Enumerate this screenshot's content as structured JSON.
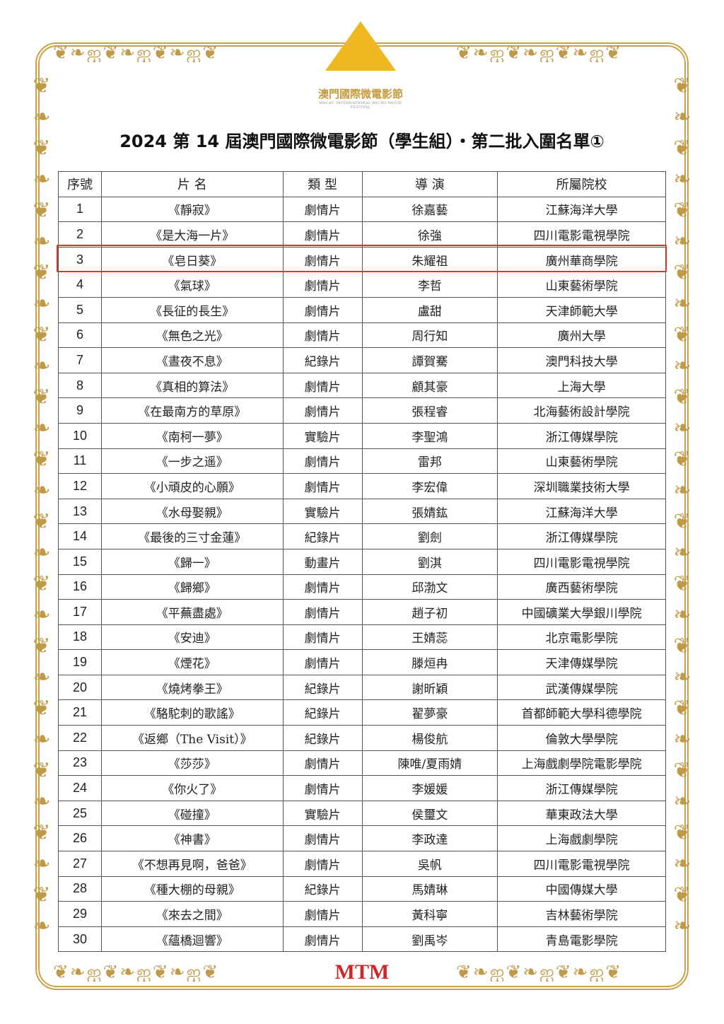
{
  "logo": {
    "name_cn": "澳門國際微電影節",
    "name_en": "MACAU INTERNATIONAL MICRO-MOVIE FESTIVAL"
  },
  "title": "2024 第 14 屆澳門國際微電影節（學生組）・第二批入圍名單①",
  "table": {
    "headers": [
      "序號",
      "片 名",
      "類 型",
      "導 演",
      "所屬院校"
    ],
    "highlight_row": 3,
    "highlight_color": "#e03030",
    "rows": [
      [
        "1",
        "《靜寂》",
        "劇情片",
        "徐嘉藝",
        "江蘇海洋大學"
      ],
      [
        "2",
        "《是大海一片》",
        "劇情片",
        "徐強",
        "四川電影電視學院"
      ],
      [
        "3",
        "《皂日葵》",
        "劇情片",
        "朱耀祖",
        "廣州華商學院"
      ],
      [
        "4",
        "《氣球》",
        "劇情片",
        "李哲",
        "山東藝術學院"
      ],
      [
        "5",
        "《長征的長生》",
        "劇情片",
        "盧甜",
        "天津師範大學"
      ],
      [
        "6",
        "《無色之光》",
        "劇情片",
        "周行知",
        "廣州大學"
      ],
      [
        "7",
        "《晝夜不息》",
        "紀錄片",
        "譚賀騫",
        "澳門科技大學"
      ],
      [
        "8",
        "《真相的算法》",
        "劇情片",
        "顧其豪",
        "上海大學"
      ],
      [
        "9",
        "《在最南方的草原》",
        "劇情片",
        "張程睿",
        "北海藝術設計學院"
      ],
      [
        "10",
        "《南柯一夢》",
        "實驗片",
        "李聖鴻",
        "浙江傳媒學院"
      ],
      [
        "11",
        "《一步之遥》",
        "劇情片",
        "雷邦",
        "山東藝術學院"
      ],
      [
        "12",
        "《小頑皮的心願》",
        "劇情片",
        "李宏偉",
        "深圳職業技術大學"
      ],
      [
        "13",
        "《水母娶親》",
        "實驗片",
        "張婧鈜",
        "江蘇海洋大學"
      ],
      [
        "14",
        "《最後的三寸金蓮》",
        "紀錄片",
        "劉劍",
        "浙江傳媒學院"
      ],
      [
        "15",
        "《歸一》",
        "動畫片",
        "劉淇",
        "四川電影電視學院"
      ],
      [
        "16",
        "《歸鄉》",
        "劇情片",
        "邱渤文",
        "廣西藝術學院"
      ],
      [
        "17",
        "《平蕪盡處》",
        "劇情片",
        "趙子初",
        "中國礦業大學銀川學院"
      ],
      [
        "18",
        "《安迪》",
        "劇情片",
        "王婧蕊",
        "北京電影學院"
      ],
      [
        "19",
        "《煙花》",
        "劇情片",
        "滕烜冉",
        "天津傳媒學院"
      ],
      [
        "20",
        "《燒烤拳王》",
        "紀錄片",
        "謝昕穎",
        "武漢傳媒學院"
      ],
      [
        "21",
        "《駱駝刺的歌謠》",
        "紀錄片",
        "翟夢豪",
        "首都師範大學科德學院"
      ],
      [
        "22",
        "《返鄉（The Visit）》",
        "紀錄片",
        "楊俊航",
        "倫敦大學學院"
      ],
      [
        "23",
        "《莎莎》",
        "劇情片",
        "陳唯/夏雨婧",
        "上海戲劇學院電影學院"
      ],
      [
        "24",
        "《你火了》",
        "劇情片",
        "李媛媛",
        "浙江傳媒學院"
      ],
      [
        "25",
        "《碰撞》",
        "實驗片",
        "侯璽文",
        "華東政法大學"
      ],
      [
        "26",
        "《神書》",
        "劇情片",
        "李政達",
        "上海戲劇學院"
      ],
      [
        "27",
        "《不想再見啊，爸爸》",
        "劇情片",
        "吳帆",
        "四川電影電視學院"
      ],
      [
        "28",
        "《種大棚的母親》",
        "紀錄片",
        "馬婧琳",
        "中國傳媒大學"
      ],
      [
        "29",
        "《來去之間》",
        "劇情片",
        "黃科寧",
        "吉林藝術學院"
      ],
      [
        "30",
        "《蘊橋迴響》",
        "劇情片",
        "劉禹岑",
        "青島電影學院"
      ]
    ]
  },
  "footer": {
    "brand": "MTM"
  }
}
